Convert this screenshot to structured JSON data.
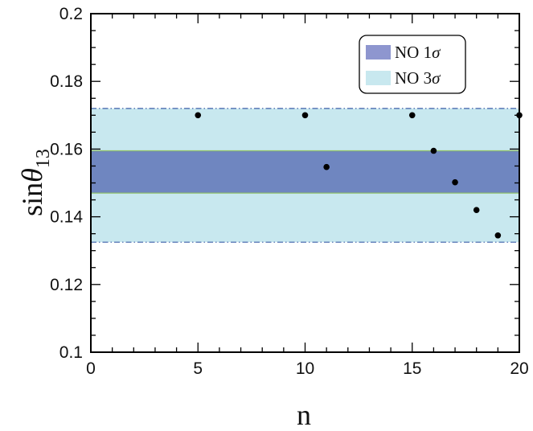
{
  "chart_data": {
    "type": "scatter",
    "xlabel": "n",
    "ylabel": {
      "base": "sin",
      "symbol": "θ",
      "subscript": "13"
    },
    "xlim": [
      0,
      20
    ],
    "ylim": [
      0.1,
      0.2
    ],
    "x_ticks": [
      0,
      5,
      10,
      15,
      20
    ],
    "x_tick_labels": [
      "0",
      "5",
      "10",
      "15",
      "20"
    ],
    "y_ticks": [
      0.1,
      0.12,
      0.14,
      0.16,
      0.18,
      0.2
    ],
    "y_tick_labels": [
      "0.1",
      "0.12",
      "0.14",
      "0.16",
      "0.18",
      "0.2"
    ],
    "grid": false,
    "legend_position": "top-right",
    "bands": [
      {
        "name": "NO 3σ",
        "label_prefix": "NO 3",
        "label_symbol": "σ",
        "y_min": 0.1325,
        "y_max": 0.172,
        "color": "#c8e8ef",
        "edge_color": "#3b5fa8",
        "edge_style": "dashdot"
      },
      {
        "name": "NO 1σ",
        "label_prefix": "NO 1",
        "label_symbol": "σ",
        "y_min": 0.147,
        "y_max": 0.1595,
        "color": "#6f86c0",
        "edge_color": "#8fbf6a",
        "edge_style": "solid"
      }
    ],
    "legend_order": [
      1,
      0
    ],
    "legend_swatch_colors": [
      "#8e96cf",
      "#c8e8ef"
    ],
    "points": {
      "x": [
        5,
        10,
        11,
        15,
        16,
        17,
        18,
        19,
        20
      ],
      "y": [
        0.17,
        0.17,
        0.1547,
        0.17,
        0.1595,
        0.1502,
        0.142,
        0.1345,
        0.17
      ]
    },
    "point_color": "#000000"
  }
}
